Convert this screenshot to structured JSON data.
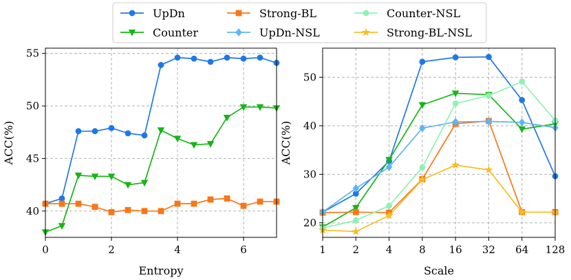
{
  "legend": {
    "location": "top-center",
    "columns": 3,
    "items": [
      {
        "name": "UpDn",
        "color": "#1f77e8",
        "marker": "circle"
      },
      {
        "name": "Counter",
        "color": "#17b517",
        "marker": "triangle-down"
      },
      {
        "name": "Strong-BL",
        "color": "#f87718",
        "marker": "square"
      },
      {
        "name": "UpDn-NSL",
        "color": "#5fb4f5",
        "marker": "diamond"
      },
      {
        "name": "Counter-NSL",
        "color": "#8ef2b4",
        "marker": "circle"
      },
      {
        "name": "Strong-BL-NSL",
        "color": "#fbbc22",
        "marker": "star"
      }
    ]
  },
  "chart_data": [
    {
      "type": "line",
      "xlabel": "Entropy",
      "ylabel": "ACC(%)",
      "xlim": [
        0,
        7
      ],
      "ylim": [
        37.5,
        55.5
      ],
      "xticks": [
        0,
        2,
        4,
        6
      ],
      "yticks": [
        40,
        45,
        50,
        55
      ],
      "grid": true,
      "x": [
        0,
        0.5,
        1,
        1.5,
        2,
        2.5,
        3,
        3.5,
        4,
        4.5,
        5,
        5.5,
        6,
        6.5,
        7
      ],
      "series": [
        {
          "name": "UpDn",
          "color": "#1f77e8",
          "marker": "circle",
          "values": [
            40.7,
            41.2,
            47.6,
            47.6,
            47.9,
            47.4,
            47.2,
            53.9,
            54.6,
            54.5,
            54.2,
            54.6,
            54.5,
            54.6,
            54.1
          ]
        },
        {
          "name": "Counter",
          "color": "#17b517",
          "marker": "triangle-down",
          "values": [
            38.0,
            38.6,
            43.4,
            43.3,
            43.3,
            42.5,
            42.7,
            47.7,
            46.9,
            46.3,
            46.4,
            48.9,
            49.9,
            49.9,
            49.8
          ]
        },
        {
          "name": "Strong-BL",
          "color": "#f87718",
          "marker": "square",
          "values": [
            40.7,
            40.7,
            40.7,
            40.4,
            39.9,
            40.1,
            40.0,
            40.0,
            40.7,
            40.7,
            41.1,
            41.2,
            40.5,
            40.9,
            40.9
          ]
        }
      ]
    },
    {
      "type": "line",
      "xlabel": "Scale",
      "ylabel": "ACC(%)",
      "xscale": "log2",
      "xticks": [
        1,
        2,
        4,
        8,
        16,
        32,
        64,
        128
      ],
      "ylim": [
        17,
        56
      ],
      "yticks": [
        20,
        30,
        40,
        50
      ],
      "grid": true,
      "x": [
        1,
        2,
        4,
        8,
        16,
        32,
        64,
        128
      ],
      "series": [
        {
          "name": "UpDn",
          "color": "#1f77e8",
          "marker": "circle",
          "values": [
            22.2,
            26.0,
            32.7,
            53.2,
            54.1,
            54.2,
            45.3,
            29.6
          ]
        },
        {
          "name": "Counter",
          "color": "#17b517",
          "marker": "triangle-down",
          "values": [
            19.1,
            23.1,
            33.0,
            44.3,
            46.7,
            46.4,
            39.3,
            40.4
          ]
        },
        {
          "name": "Strong-BL",
          "color": "#f87718",
          "marker": "square",
          "values": [
            22.1,
            22.2,
            22.1,
            29.0,
            40.4,
            41.0,
            22.2,
            22.2
          ]
        },
        {
          "name": "UpDn-NSL",
          "color": "#5fb4f5",
          "marker": "diamond",
          "values": [
            22.2,
            27.1,
            31.5,
            39.5,
            40.8,
            40.9,
            40.7,
            39.6
          ]
        },
        {
          "name": "Counter-NSL",
          "color": "#8ef2b4",
          "marker": "circle",
          "values": [
            18.9,
            20.5,
            23.5,
            31.4,
            44.6,
            46.2,
            49.1,
            41.1
          ]
        },
        {
          "name": "Strong-BL-NSL",
          "color": "#fbbc22",
          "marker": "star",
          "values": [
            18.5,
            18.2,
            21.5,
            28.9,
            31.9,
            30.9,
            22.2,
            22.2
          ]
        }
      ]
    }
  ]
}
